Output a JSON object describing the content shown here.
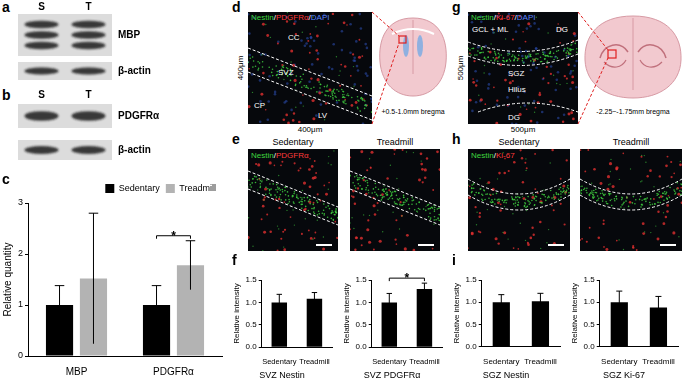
{
  "figure": {
    "stain_colors": {
      "Nestin": "#3fd63f",
      "PDGFRα": "#ff3b3b",
      "Ki-67": "#ff3b3b",
      "DAPI": "#5b86ff"
    },
    "blots": [
      {
        "panel": "a",
        "lanes": [
          "S",
          "T"
        ],
        "rows": [
          "MBP",
          "β-actin"
        ]
      },
      {
        "panel": "b",
        "lanes": [
          "S",
          "T"
        ],
        "rows": [
          "PDGFRα",
          "β-actin"
        ]
      }
    ],
    "images": [
      {
        "panel": "d",
        "stain": "Nestin/PDGFRα/DAPI",
        "regions": [
          "CC",
          "SVZ",
          "CP",
          "LV"
        ],
        "scale_labels": [
          "400μm",
          "400μm"
        ],
        "schematic_caption": "+0.5-1.0mm bregma"
      },
      {
        "panel": "e",
        "stain": "Nestin/PDGFRα",
        "groups": [
          "Sedentary",
          "Treadmill"
        ]
      },
      {
        "panel": "g",
        "stain": "Nestin/Ki-67/DAPI",
        "regions": [
          "GCL + ML",
          "SGZ",
          "DG",
          "Hilus",
          "DG"
        ],
        "scale_labels": [
          "500μm",
          "500μm"
        ],
        "schematic_caption": "-2.25~-1.75mm bregma"
      },
      {
        "panel": "h",
        "stain": "Nestin/Ki-67",
        "groups": [
          "Sedentary",
          "Treadmill"
        ]
      }
    ]
  },
  "chart_data": [
    {
      "panel": "c",
      "type": "bar",
      "categories": [
        "MBP",
        "PDGFRα"
      ],
      "series": [
        {
          "name": "Sedentary",
          "color": "#000000",
          "values": [
            1.0,
            1.0
          ],
          "errors": [
            0.38,
            0.38
          ]
        },
        {
          "name": "Treadmill",
          "color": "#b3b3b3",
          "values": [
            1.52,
            1.78
          ],
          "errors": [
            1.28,
            0.48
          ]
        }
      ],
      "y_label": "Relative quantity",
      "ylim": [
        0,
        3
      ],
      "yticks": [
        0,
        1,
        2,
        3
      ],
      "grid": false,
      "legend": "top-right",
      "significance": [
        {
          "category": "PDGFRα",
          "text": "*"
        }
      ]
    },
    {
      "panel": "f",
      "type": "bar",
      "title": "SVZ Nestin",
      "categories": [
        "Sedentary",
        "Treadmill"
      ],
      "values": [
        1.0,
        1.08
      ],
      "errors": [
        0.18,
        0.14
      ],
      "color": "#000000",
      "y_label": "Relative intensity",
      "ylim": [
        0,
        1.5
      ],
      "yticks": [
        {
          "value": 0,
          "label": "0.0"
        },
        {
          "value": 0.5,
          "label": "0.5"
        },
        {
          "value": 1,
          "label": "1.0"
        },
        {
          "value": 1.5,
          "label": "1.5"
        }
      ],
      "grid": false
    },
    {
      "type": "bar",
      "title": "SVZ PDGFRα",
      "categories": [
        "Sedentary",
        "Treadmill"
      ],
      "values": [
        1.0,
        1.3
      ],
      "errors": [
        0.2,
        0.13
      ],
      "color": "#000000",
      "y_label": "Relative intensity",
      "ylim": [
        0,
        1.5
      ],
      "yticks": [
        {
          "value": 0,
          "label": "0.0"
        },
        {
          "value": 0.5,
          "label": "0.5"
        },
        {
          "value": 1,
          "label": "1.0"
        },
        {
          "value": 1.5,
          "label": "1.5"
        }
      ],
      "grid": false,
      "significance": [
        {
          "between": [
            "Sedentary",
            "Treadmill"
          ],
          "text": "*"
        }
      ]
    },
    {
      "panel": "i",
      "type": "bar",
      "title": "SGZ Nestin",
      "categories": [
        "Sedentary",
        "Treadmill"
      ],
      "values": [
        1.0,
        1.02
      ],
      "errors": [
        0.17,
        0.18
      ],
      "color": "#000000",
      "y_label": "Relative intensity",
      "ylim": [
        0,
        1.5
      ],
      "yticks": [
        {
          "value": 0,
          "label": "0.0"
        },
        {
          "value": 0.5,
          "label": "0.5"
        },
        {
          "value": 1,
          "label": "1.0"
        },
        {
          "value": 1.5,
          "label": "1.5"
        }
      ],
      "grid": false
    },
    {
      "type": "bar",
      "title": "SGZ Ki-67",
      "categories": [
        "Sedentary",
        "Treadmill"
      ],
      "values": [
        1.0,
        0.88
      ],
      "errors": [
        0.25,
        0.25
      ],
      "color": "#000000",
      "y_label": "Relative intensity",
      "ylim": [
        0,
        1.5
      ],
      "yticks": [
        {
          "value": 0,
          "label": "0.0"
        },
        {
          "value": 0.5,
          "label": "0.5"
        },
        {
          "value": 1,
          "label": "1.0"
        },
        {
          "value": 1.5,
          "label": "1.5"
        }
      ],
      "grid": false
    }
  ]
}
